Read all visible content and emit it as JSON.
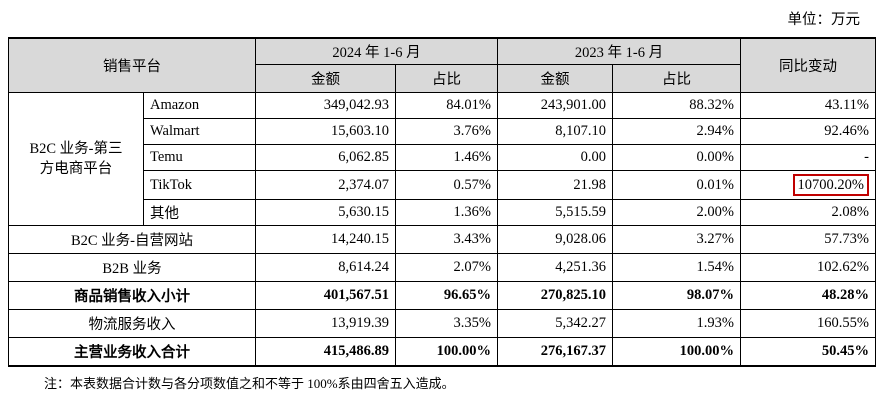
{
  "unit": "单位：万元",
  "table": {
    "header": {
      "platform": "销售平台",
      "periods": [
        "2024 年 1-6 月",
        "2023 年 1-6 月"
      ],
      "sub": [
        "金额",
        "占比",
        "金额",
        "占比"
      ],
      "yoy": "同比变动"
    },
    "group": {
      "label": "B2C 业务-第三方电商平台",
      "rows": [
        {
          "label": "Amazon",
          "cells": [
            "349,042.93",
            "84.01%",
            "243,901.00",
            "88.32%",
            "43.11%"
          ]
        },
        {
          "label": "Walmart",
          "cells": [
            "15,603.10",
            "3.76%",
            "8,107.10",
            "2.94%",
            "92.46%"
          ]
        },
        {
          "label": "Temu",
          "cells": [
            "6,062.85",
            "1.46%",
            "0.00",
            "0.00%",
            "-"
          ]
        },
        {
          "label": "TikTok",
          "cells": [
            "2,374.07",
            "0.57%",
            "21.98",
            "0.01%",
            "10700.20%"
          ],
          "highlight_cell": 4
        },
        {
          "label": "其他",
          "cells": [
            "5,630.15",
            "1.36%",
            "5,515.59",
            "2.00%",
            "2.08%"
          ]
        }
      ]
    },
    "rows": [
      {
        "label": "B2C 业务-自营网站",
        "cells": [
          "14,240.15",
          "3.43%",
          "9,028.06",
          "3.27%",
          "57.73%"
        ]
      },
      {
        "label": "B2B 业务",
        "cells": [
          "8,614.24",
          "2.07%",
          "4,251.36",
          "1.54%",
          "102.62%"
        ]
      },
      {
        "label": "商品销售收入小计",
        "cells": [
          "401,567.51",
          "96.65%",
          "270,825.10",
          "98.07%",
          "48.28%"
        ],
        "bold": true
      },
      {
        "label": "物流服务收入",
        "cells": [
          "13,919.39",
          "3.35%",
          "5,342.27",
          "1.93%",
          "160.55%"
        ]
      },
      {
        "label": "主营业务收入合计",
        "cells": [
          "415,486.89",
          "100.00%",
          "276,167.37",
          "100.00%",
          "50.45%"
        ],
        "bold": true
      }
    ]
  },
  "note": "注：本表数据合计数与各分项数值之和不等于 100%系由四舍五入造成。"
}
